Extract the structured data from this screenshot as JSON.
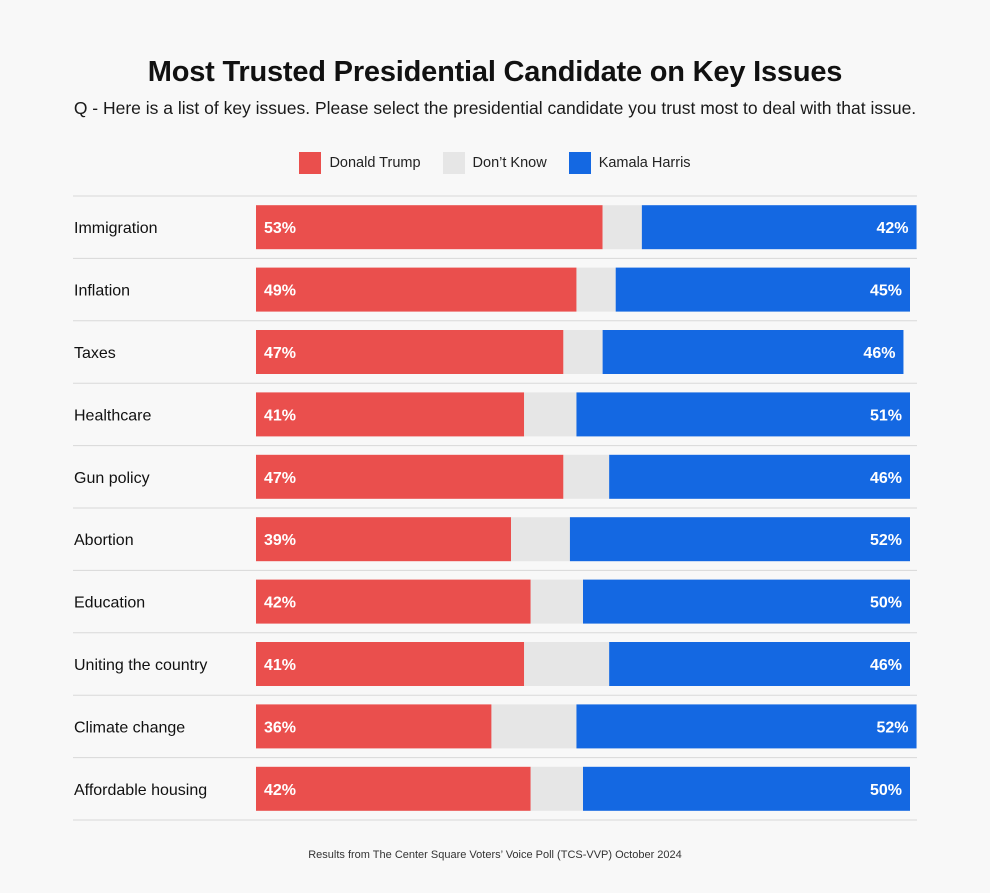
{
  "chart_data": {
    "type": "bar",
    "orientation": "horizontal",
    "stacked": true,
    "title": "Most Trusted Presidential Candidate on Key Issues",
    "subtitle": "Q - Here is a list of key issues. Please select the presidential candidate you trust most to deal with that issue.",
    "categories": [
      "Immigration",
      "Inflation",
      "Taxes",
      "Healthcare",
      "Gun policy",
      "Abortion",
      "Education",
      "Uniting the country",
      "Climate change",
      "Affordable housing"
    ],
    "series": [
      {
        "name": "Donald Trump",
        "color": "#ea4f4d",
        "values": [
          53,
          49,
          47,
          41,
          47,
          39,
          42,
          41,
          36,
          42
        ],
        "labels": [
          "53%",
          "49%",
          "47%",
          "41%",
          "47%",
          "39%",
          "42%",
          "41%",
          "36%",
          "42%"
        ]
      },
      {
        "name": "Don’t Know",
        "color": "#e6e6e6",
        "values": [
          6,
          6,
          6,
          8,
          7,
          9,
          8,
          13,
          13,
          8
        ],
        "labels": []
      },
      {
        "name": "Kamala  Harris",
        "color": "#1468e2",
        "values": [
          42,
          45,
          46,
          51,
          46,
          52,
          50,
          46,
          52,
          50
        ],
        "labels": [
          "42%",
          "45%",
          "46%",
          "51%",
          "46%",
          "52%",
          "50%",
          "46%",
          "52%",
          "50%"
        ]
      }
    ],
    "xlim": [
      0,
      100
    ],
    "legend_position": "top-center",
    "grid": false
  },
  "footer": "Results from The Center Square Voters’ Voice Poll (TCS-VVP) October 2024"
}
